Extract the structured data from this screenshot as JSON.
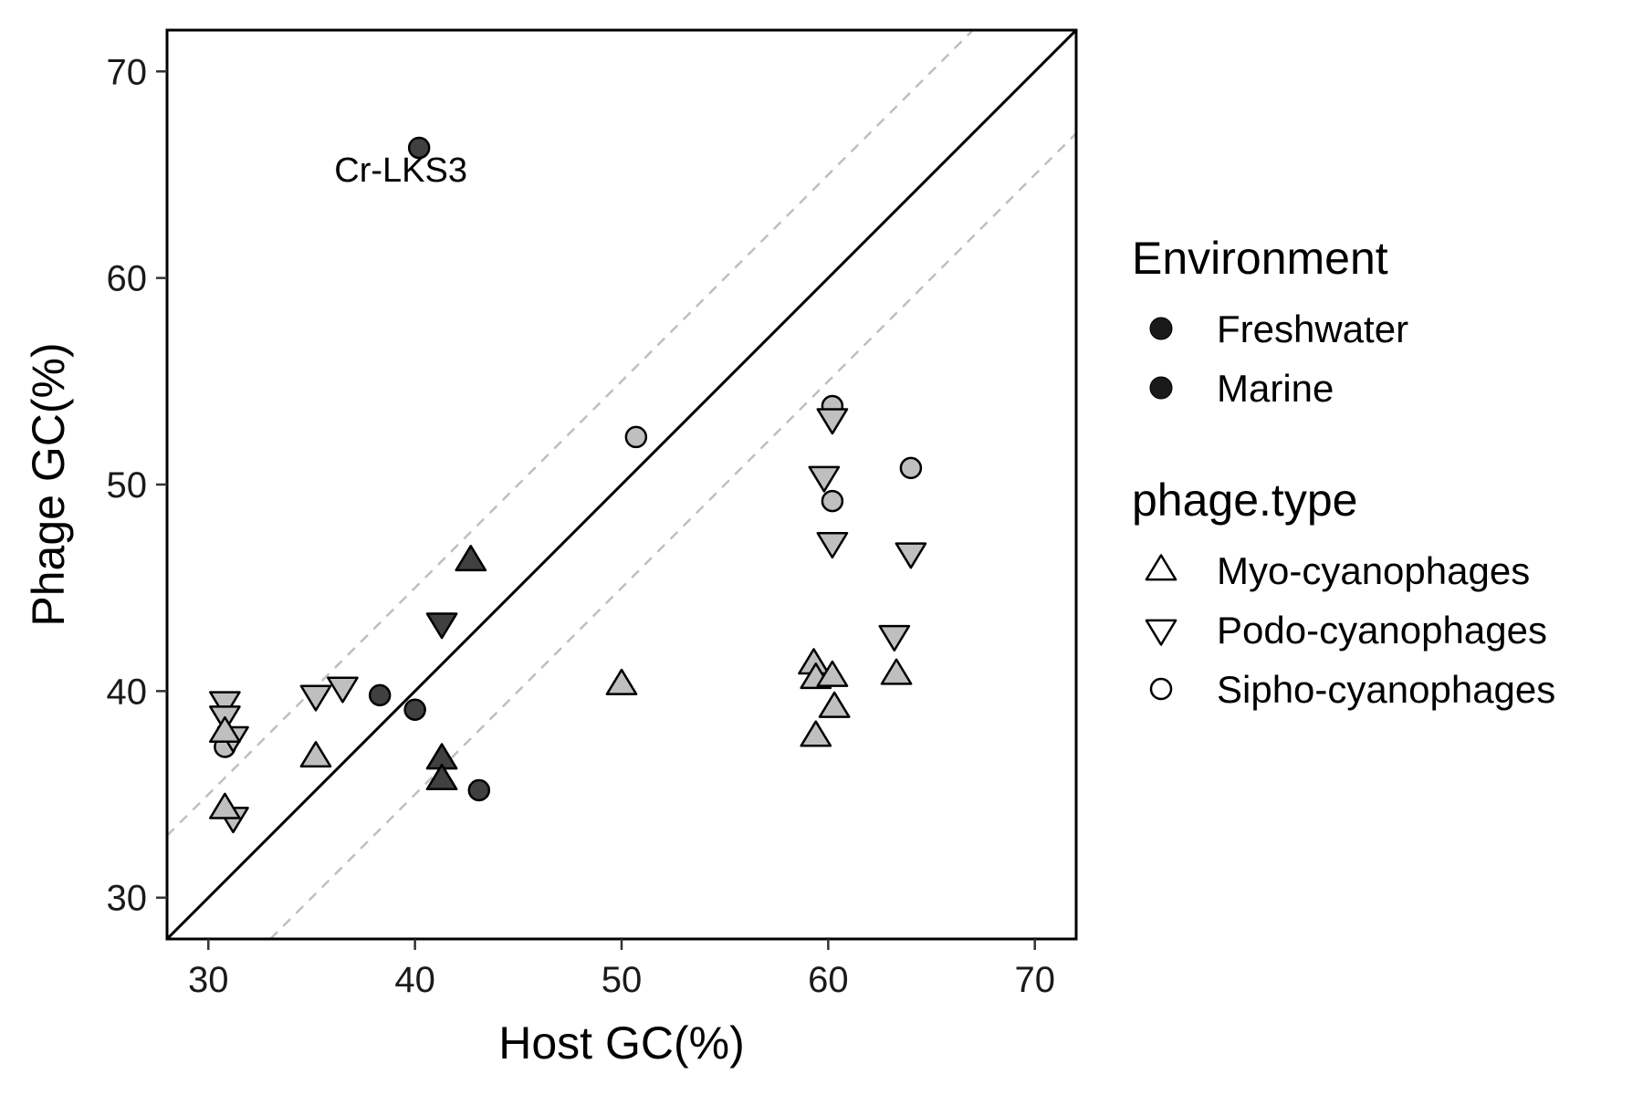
{
  "chart_data": {
    "type": "scatter",
    "xlabel": "Host GC(%)",
    "ylabel": "Phage GC(%)",
    "xlim": [
      28,
      72
    ],
    "ylim": [
      28,
      72
    ],
    "x_ticks": [
      30,
      40,
      50,
      60,
      70
    ],
    "y_ticks": [
      30,
      40,
      50,
      60,
      70
    ],
    "grid": false,
    "reference_lines": [
      {
        "slope": 1,
        "intercept": 0,
        "style": "solid",
        "color": "#000000"
      },
      {
        "slope": 1,
        "intercept": 5,
        "style": "dashed",
        "color": "#bfbfbf"
      },
      {
        "slope": 1,
        "intercept": -5,
        "style": "dashed",
        "color": "#bfbfbf"
      }
    ],
    "annotations": [
      {
        "text": "Cr-LKS3",
        "x": 40.2,
        "y": 65.2
      }
    ],
    "fill_colors": {
      "Freshwater": "#404040",
      "Marine": "#bfbfbf"
    },
    "legend_placement": "right",
    "legends": [
      {
        "title": "Environment",
        "key": "env",
        "items": [
          {
            "label": "Freshwater",
            "shape": "circle"
          },
          {
            "label": "Marine",
            "shape": "circle"
          }
        ]
      },
      {
        "title": "phage.type",
        "key": "type",
        "items": [
          {
            "label": "Myo-cyanophages",
            "shape": "triangle-up"
          },
          {
            "label": "Podo-cyanophages",
            "shape": "triangle-down"
          },
          {
            "label": "Sipho-cyanophages",
            "shape": "circle"
          }
        ]
      }
    ],
    "points": [
      {
        "x": 40.2,
        "y": 66.3,
        "env": "Freshwater",
        "type": "Sipho-cyanophages"
      },
      {
        "x": 38.3,
        "y": 39.8,
        "env": "Freshwater",
        "type": "Sipho-cyanophages"
      },
      {
        "x": 40.0,
        "y": 39.1,
        "env": "Freshwater",
        "type": "Sipho-cyanophages"
      },
      {
        "x": 43.1,
        "y": 35.2,
        "env": "Freshwater",
        "type": "Sipho-cyanophages"
      },
      {
        "x": 42.7,
        "y": 46.3,
        "env": "Freshwater",
        "type": "Myo-cyanophages"
      },
      {
        "x": 41.3,
        "y": 36.7,
        "env": "Freshwater",
        "type": "Myo-cyanophages"
      },
      {
        "x": 41.3,
        "y": 35.7,
        "env": "Freshwater",
        "type": "Myo-cyanophages"
      },
      {
        "x": 41.3,
        "y": 43.3,
        "env": "Freshwater",
        "type": "Podo-cyanophages"
      },
      {
        "x": 50.7,
        "y": 52.3,
        "env": "Marine",
        "type": "Sipho-cyanophages"
      },
      {
        "x": 60.2,
        "y": 53.8,
        "env": "Marine",
        "type": "Sipho-cyanophages"
      },
      {
        "x": 64.0,
        "y": 50.8,
        "env": "Marine",
        "type": "Sipho-cyanophages"
      },
      {
        "x": 60.2,
        "y": 49.2,
        "env": "Marine",
        "type": "Sipho-cyanophages"
      },
      {
        "x": 30.8,
        "y": 37.3,
        "env": "Marine",
        "type": "Sipho-cyanophages"
      },
      {
        "x": 60.2,
        "y": 53.2,
        "env": "Marine",
        "type": "Podo-cyanophages"
      },
      {
        "x": 59.8,
        "y": 50.4,
        "env": "Marine",
        "type": "Podo-cyanophages"
      },
      {
        "x": 60.2,
        "y": 47.2,
        "env": "Marine",
        "type": "Podo-cyanophages"
      },
      {
        "x": 64.0,
        "y": 46.7,
        "env": "Marine",
        "type": "Podo-cyanophages"
      },
      {
        "x": 63.2,
        "y": 42.7,
        "env": "Marine",
        "type": "Podo-cyanophages"
      },
      {
        "x": 30.8,
        "y": 39.5,
        "env": "Marine",
        "type": "Podo-cyanophages"
      },
      {
        "x": 30.8,
        "y": 38.8,
        "env": "Marine",
        "type": "Podo-cyanophages"
      },
      {
        "x": 31.2,
        "y": 37.8,
        "env": "Marine",
        "type": "Podo-cyanophages"
      },
      {
        "x": 31.2,
        "y": 33.9,
        "env": "Marine",
        "type": "Podo-cyanophages"
      },
      {
        "x": 35.2,
        "y": 39.8,
        "env": "Marine",
        "type": "Podo-cyanophages"
      },
      {
        "x": 36.5,
        "y": 40.2,
        "env": "Marine",
        "type": "Podo-cyanophages"
      },
      {
        "x": 30.8,
        "y": 38.0,
        "env": "Marine",
        "type": "Myo-cyanophages"
      },
      {
        "x": 30.8,
        "y": 34.3,
        "env": "Marine",
        "type": "Myo-cyanophages"
      },
      {
        "x": 35.2,
        "y": 36.8,
        "env": "Marine",
        "type": "Myo-cyanophages"
      },
      {
        "x": 50.0,
        "y": 40.3,
        "env": "Marine",
        "type": "Myo-cyanophages"
      },
      {
        "x": 59.3,
        "y": 41.3,
        "env": "Marine",
        "type": "Myo-cyanophages"
      },
      {
        "x": 59.4,
        "y": 40.6,
        "env": "Marine",
        "type": "Myo-cyanophages"
      },
      {
        "x": 60.2,
        "y": 40.7,
        "env": "Marine",
        "type": "Myo-cyanophages"
      },
      {
        "x": 60.3,
        "y": 39.2,
        "env": "Marine",
        "type": "Myo-cyanophages"
      },
      {
        "x": 59.4,
        "y": 37.8,
        "env": "Marine",
        "type": "Myo-cyanophages"
      },
      {
        "x": 63.3,
        "y": 40.8,
        "env": "Marine",
        "type": "Myo-cyanophages"
      }
    ]
  }
}
